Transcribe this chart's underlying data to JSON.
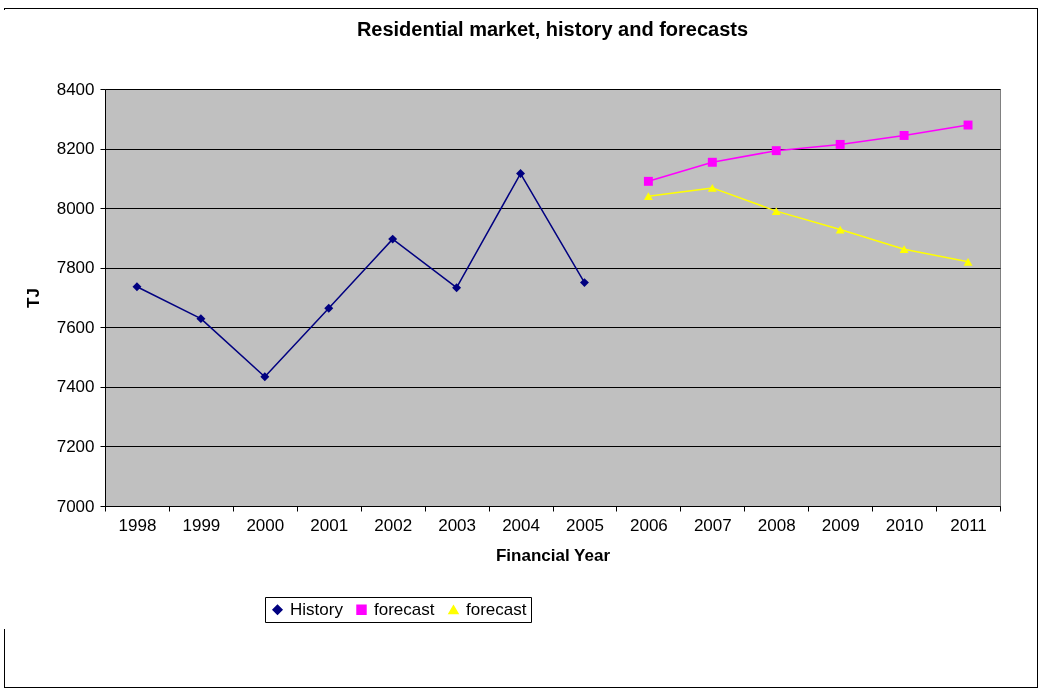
{
  "chart_data": {
    "type": "line",
    "title": "Residential market, history and forecasts",
    "xlabel": "Financial Year",
    "ylabel": "TJ",
    "categories": [
      "1998",
      "1999",
      "2000",
      "2001",
      "2002",
      "2003",
      "2004",
      "2005",
      "2006",
      "2007",
      "2008",
      "2009",
      "2010",
      "2011"
    ],
    "series": [
      {
        "name": "History",
        "color": "#000080",
        "marker": "diamond",
        "values": [
          7736,
          7629,
          7434,
          7664,
          7896,
          7733,
          8116,
          7750,
          null,
          null,
          null,
          null,
          null,
          null
        ]
      },
      {
        "name": "forecast",
        "color": "#ff00ff",
        "marker": "square",
        "values": [
          null,
          null,
          null,
          null,
          null,
          null,
          null,
          null,
          8090,
          8154,
          8193,
          8214,
          8244,
          8279
        ]
      },
      {
        "name": "forecast",
        "color": "#ffff00",
        "marker": "triangle",
        "values": [
          null,
          null,
          null,
          null,
          null,
          null,
          null,
          null,
          8040,
          8068,
          7990,
          7928,
          7862,
          7820
        ]
      }
    ],
    "ylim": [
      7000,
      8400
    ],
    "yticks": [
      7000,
      7200,
      7400,
      7600,
      7800,
      8000,
      8200,
      8400
    ],
    "grid": "y",
    "legend": "bottom"
  }
}
